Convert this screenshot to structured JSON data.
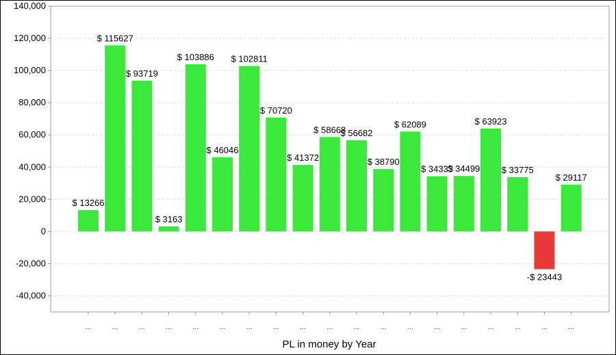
{
  "chart_data": {
    "type": "bar",
    "xlabel": "PL in money by Year",
    "ylabel": "",
    "ylim": [
      -50000,
      140000
    ],
    "yticks": [
      -40000,
      -20000,
      0,
      20000,
      40000,
      60000,
      80000,
      100000,
      120000,
      140000
    ],
    "ytick_labels": [
      "-40,000",
      "-20,000",
      "0",
      "20,000",
      "40,000",
      "60,000",
      "80,000",
      "100,000",
      "120,000",
      "140,000"
    ],
    "grid": true,
    "categories": [
      "...",
      "...",
      "...",
      "...",
      "...",
      "...",
      "...",
      "...",
      "...",
      "...",
      "...",
      "...",
      "...",
      "...",
      "...",
      "...",
      "...",
      "...",
      "..."
    ],
    "values": [
      13266,
      115627,
      93719,
      3163,
      103886,
      46046,
      102811,
      70720,
      41372,
      58668,
      56682,
      38790,
      62089,
      34333,
      34499,
      63923,
      33775,
      -23443,
      29117
    ],
    "data_labels": [
      "$ 13266",
      "$ 115627",
      "$ 93719",
      "$ 3163",
      "$ 103886",
      "$ 46046",
      "$ 102811",
      "$ 70720",
      "$ 41372",
      "$ 58668",
      "$ 56682",
      "$ 38790",
      "$ 62089",
      "$ 34333",
      "$ 34499",
      "$ 63923",
      "$ 33775",
      "-$ 23443",
      "$ 29117"
    ],
    "colors": {
      "positive": "#3de83d",
      "negative": "#e83a3a",
      "grid": "#d8d8d8",
      "axis": "#999999"
    }
  }
}
